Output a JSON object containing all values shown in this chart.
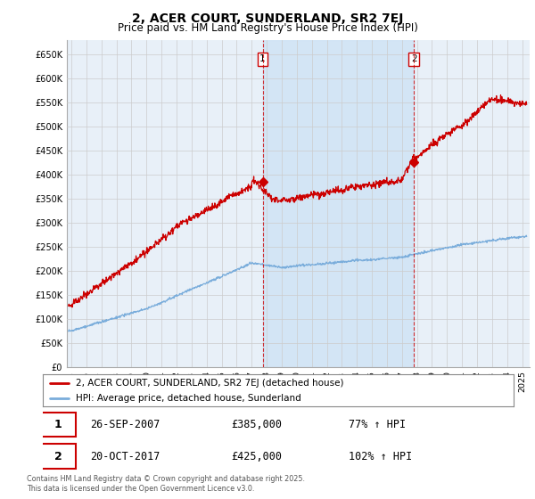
{
  "title": "2, ACER COURT, SUNDERLAND, SR2 7EJ",
  "subtitle": "Price paid vs. HM Land Registry's House Price Index (HPI)",
  "ylabel_ticks": [
    "£0",
    "£50K",
    "£100K",
    "£150K",
    "£200K",
    "£250K",
    "£300K",
    "£350K",
    "£400K",
    "£450K",
    "£500K",
    "£550K",
    "£600K",
    "£650K"
  ],
  "ytick_values": [
    0,
    50000,
    100000,
    150000,
    200000,
    250000,
    300000,
    350000,
    400000,
    450000,
    500000,
    550000,
    600000,
    650000
  ],
  "ylim": [
    0,
    680000
  ],
  "xlim_start": 1994.7,
  "xlim_end": 2025.5,
  "marker1_x": 2007.73,
  "marker1_y": 385000,
  "marker2_x": 2017.8,
  "marker2_y": 425000,
  "vline1_x": 2007.73,
  "vline2_x": 2017.8,
  "hpi_color": "#7aaddb",
  "price_color": "#cc0000",
  "shade_color": "#d0e4f5",
  "grid_color": "#cccccc",
  "background_color": "#e8f0f8",
  "legend_label_price": "2, ACER COURT, SUNDERLAND, SR2 7EJ (detached house)",
  "legend_label_hpi": "HPI: Average price, detached house, Sunderland",
  "annotation1_date": "26-SEP-2007",
  "annotation1_price": "£385,000",
  "annotation1_hpi": "77% ↑ HPI",
  "annotation2_date": "20-OCT-2017",
  "annotation2_price": "£425,000",
  "annotation2_hpi": "102% ↑ HPI",
  "footnote": "Contains HM Land Registry data © Crown copyright and database right 2025.\nThis data is licensed under the Open Government Licence v3.0.",
  "title_fontsize": 10,
  "subtitle_fontsize": 8.5
}
